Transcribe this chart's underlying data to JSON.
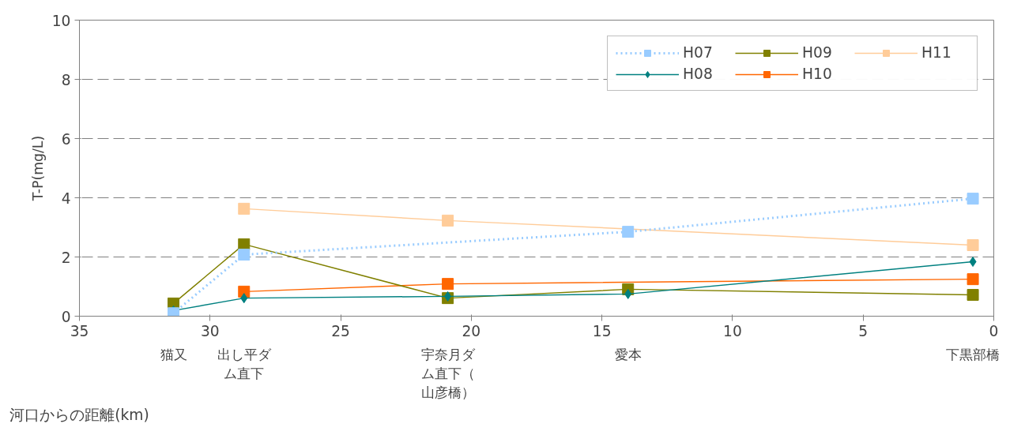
{
  "chart_data": {
    "type": "line",
    "ylabel": "T-P(mg/L)",
    "xlabel": "河口からの距離(km)",
    "xlim": [
      35,
      0
    ],
    "xticks": [
      35,
      30,
      25,
      20,
      15,
      10,
      5,
      0
    ],
    "ylim": [
      0,
      10
    ],
    "yticks": [
      0,
      2,
      4,
      6,
      8,
      10
    ],
    "grid": "y",
    "legend": "top right",
    "annotations": [
      "猫又",
      "出し平ダム直下",
      "宇奈月ダム直下（山彦橋）",
      "愛本",
      "下黒部橋"
    ],
    "series": [
      {
        "name": "H07",
        "color": "#99ccff",
        "line_style": "dotted",
        "marker": "square",
        "x": [
          31.4,
          28.7,
          14.0,
          0.8
        ],
        "values": [
          0.1,
          2.08,
          2.85,
          3.97
        ]
      },
      {
        "name": "H08",
        "color": "#008080",
        "marker": "diamond",
        "x": [
          31.4,
          28.7,
          20.9,
          14.0,
          0.8
        ],
        "values": [
          0.19,
          0.61,
          0.67,
          0.75,
          1.84
        ]
      },
      {
        "name": "H09",
        "color": "#808000",
        "marker": "square",
        "x": [
          31.4,
          28.7,
          20.9,
          14.0,
          0.8
        ],
        "values": [
          0.43,
          2.43,
          0.61,
          0.91,
          0.72
        ]
      },
      {
        "name": "H10",
        "color": "#ff6600",
        "marker": "square",
        "x": [
          28.7,
          20.9,
          0.8
        ],
        "values": [
          0.83,
          1.09,
          1.25
        ]
      },
      {
        "name": "H11",
        "color": "#ffcc99",
        "marker": "square",
        "x": [
          28.7,
          20.9,
          0.8
        ],
        "values": [
          3.63,
          3.23,
          2.4
        ]
      }
    ]
  }
}
